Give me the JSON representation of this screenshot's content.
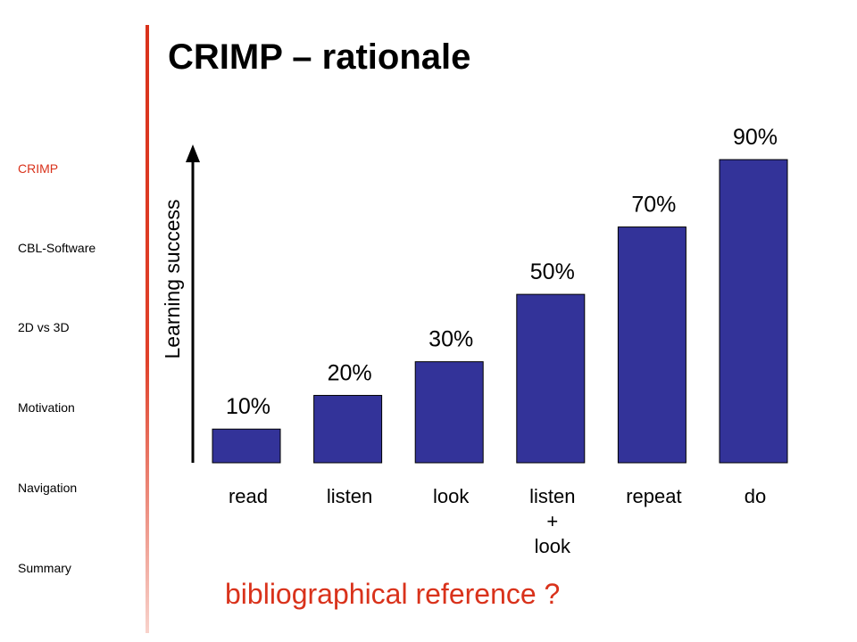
{
  "nav": {
    "items": [
      {
        "label": "CRIMP",
        "active": true
      },
      {
        "label": "CBL-Software",
        "active": false
      },
      {
        "label": "2D vs 3D",
        "active": false
      },
      {
        "label": "Motivation",
        "active": false
      },
      {
        "label": "Navigation",
        "active": false
      },
      {
        "label": "Summary",
        "active": false
      }
    ]
  },
  "slide": {
    "title": "CRIMP – rationale",
    "footnote": "bibliographical reference ?"
  },
  "colors": {
    "accent": "#d9321b",
    "bar": "#333399"
  },
  "chart_data": {
    "type": "bar",
    "categories": [
      [
        "read"
      ],
      [
        "listen"
      ],
      [
        "look"
      ],
      [
        "listen",
        "+",
        "look"
      ],
      [
        "repeat"
      ],
      [
        "do"
      ]
    ],
    "values": [
      10,
      20,
      30,
      50,
      70,
      90
    ],
    "data_labels": [
      "10%",
      "20%",
      "30%",
      "50%",
      "70%",
      "90%"
    ],
    "ylabel": "Learning success",
    "ylim": [
      0,
      90
    ],
    "grid": false,
    "legend": "none"
  }
}
